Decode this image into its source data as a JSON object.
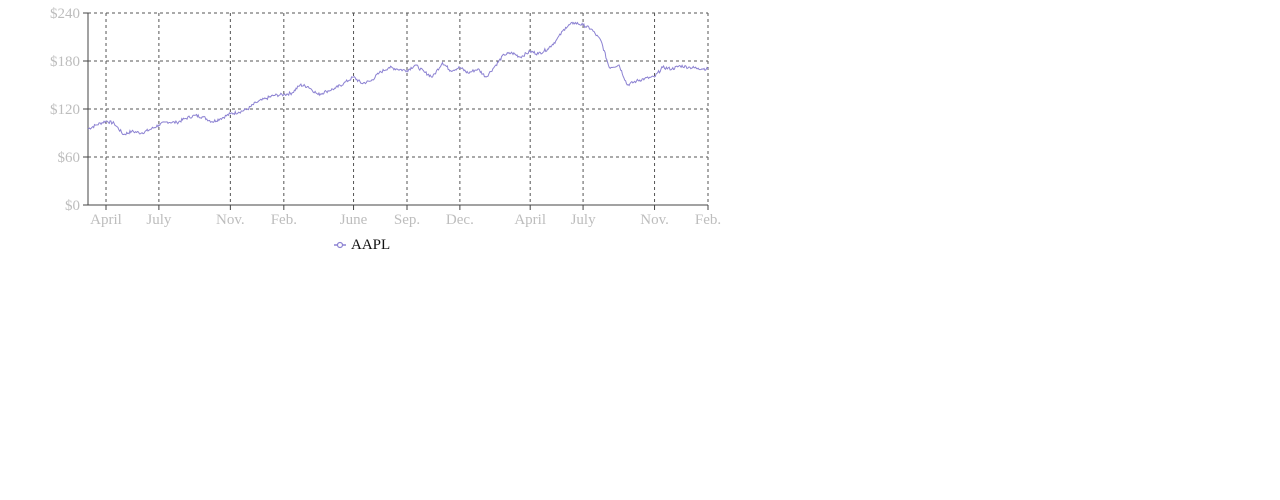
{
  "chart_data": {
    "type": "line",
    "title": "",
    "xlabel": "",
    "ylabel": "",
    "x_tick_labels": [
      "April",
      "July",
      "Nov.",
      "Feb.",
      "June",
      "Sep.",
      "Dec.",
      "April",
      "July",
      "Nov.",
      "Feb."
    ],
    "y_tick_labels": [
      "$0",
      "$60",
      "$120",
      "$180",
      "$240"
    ],
    "y_ticks": [
      0,
      60,
      120,
      180,
      240
    ],
    "ylim": [
      0,
      240
    ],
    "xlim": [
      "2021-03-01",
      "2024-02-01"
    ],
    "x_tick_values": [
      "2021-04-01",
      "2021-07-01",
      "2021-11-01",
      "2022-02-01",
      "2022-06-01",
      "2022-09-01",
      "2022-12-01",
      "2023-04-01",
      "2023-07-01",
      "2023-11-01",
      "2024-02-01"
    ],
    "grid": true,
    "legend": {
      "position": "bottom"
    },
    "series": [
      {
        "name": "AAPL",
        "color": "#8c82d2",
        "x": [
          "2021-03-01",
          "2021-03-15",
          "2021-04-01",
          "2021-04-15",
          "2021-05-01",
          "2021-05-15",
          "2021-06-01",
          "2021-06-15",
          "2021-07-01",
          "2021-07-15",
          "2021-08-01",
          "2021-08-15",
          "2021-09-01",
          "2021-09-15",
          "2021-10-01",
          "2021-10-15",
          "2021-11-01",
          "2021-11-15",
          "2021-12-01",
          "2021-12-15",
          "2022-01-01",
          "2022-01-15",
          "2022-02-01",
          "2022-02-15",
          "2022-03-01",
          "2022-03-15",
          "2022-04-01",
          "2022-04-15",
          "2022-05-01",
          "2022-05-15",
          "2022-06-01",
          "2022-06-15",
          "2022-07-01",
          "2022-07-15",
          "2022-08-01",
          "2022-08-15",
          "2022-09-01",
          "2022-09-15",
          "2022-10-01",
          "2022-10-15",
          "2022-11-01",
          "2022-11-15",
          "2022-12-01",
          "2022-12-15",
          "2023-01-01",
          "2023-01-15",
          "2023-02-01",
          "2023-02-15",
          "2023-03-01",
          "2023-03-15",
          "2023-04-01",
          "2023-04-15",
          "2023-05-01",
          "2023-05-15",
          "2023-06-01",
          "2023-06-15",
          "2023-07-01",
          "2023-07-15",
          "2023-08-01",
          "2023-08-15",
          "2023-09-01",
          "2023-09-15",
          "2023-10-01",
          "2023-10-15",
          "2023-11-01",
          "2023-11-15",
          "2023-12-01",
          "2023-12-15",
          "2024-01-01",
          "2024-01-15",
          "2024-02-01"
        ],
        "values": [
          95,
          100,
          105,
          102,
          88,
          92,
          90,
          94,
          100,
          104,
          103,
          108,
          112,
          110,
          104,
          108,
          114,
          116,
          120,
          128,
          133,
          137,
          138,
          140,
          150,
          148,
          138,
          142,
          146,
          152,
          160,
          152,
          155,
          165,
          172,
          170,
          168,
          175,
          166,
          160,
          178,
          168,
          172,
          165,
          170,
          160,
          175,
          188,
          190,
          185,
          192,
          189,
          195,
          205,
          222,
          228,
          225,
          220,
          205,
          172,
          175,
          150,
          155,
          158,
          160,
          172,
          170,
          174,
          172,
          171,
          170
        ]
      }
    ]
  }
}
